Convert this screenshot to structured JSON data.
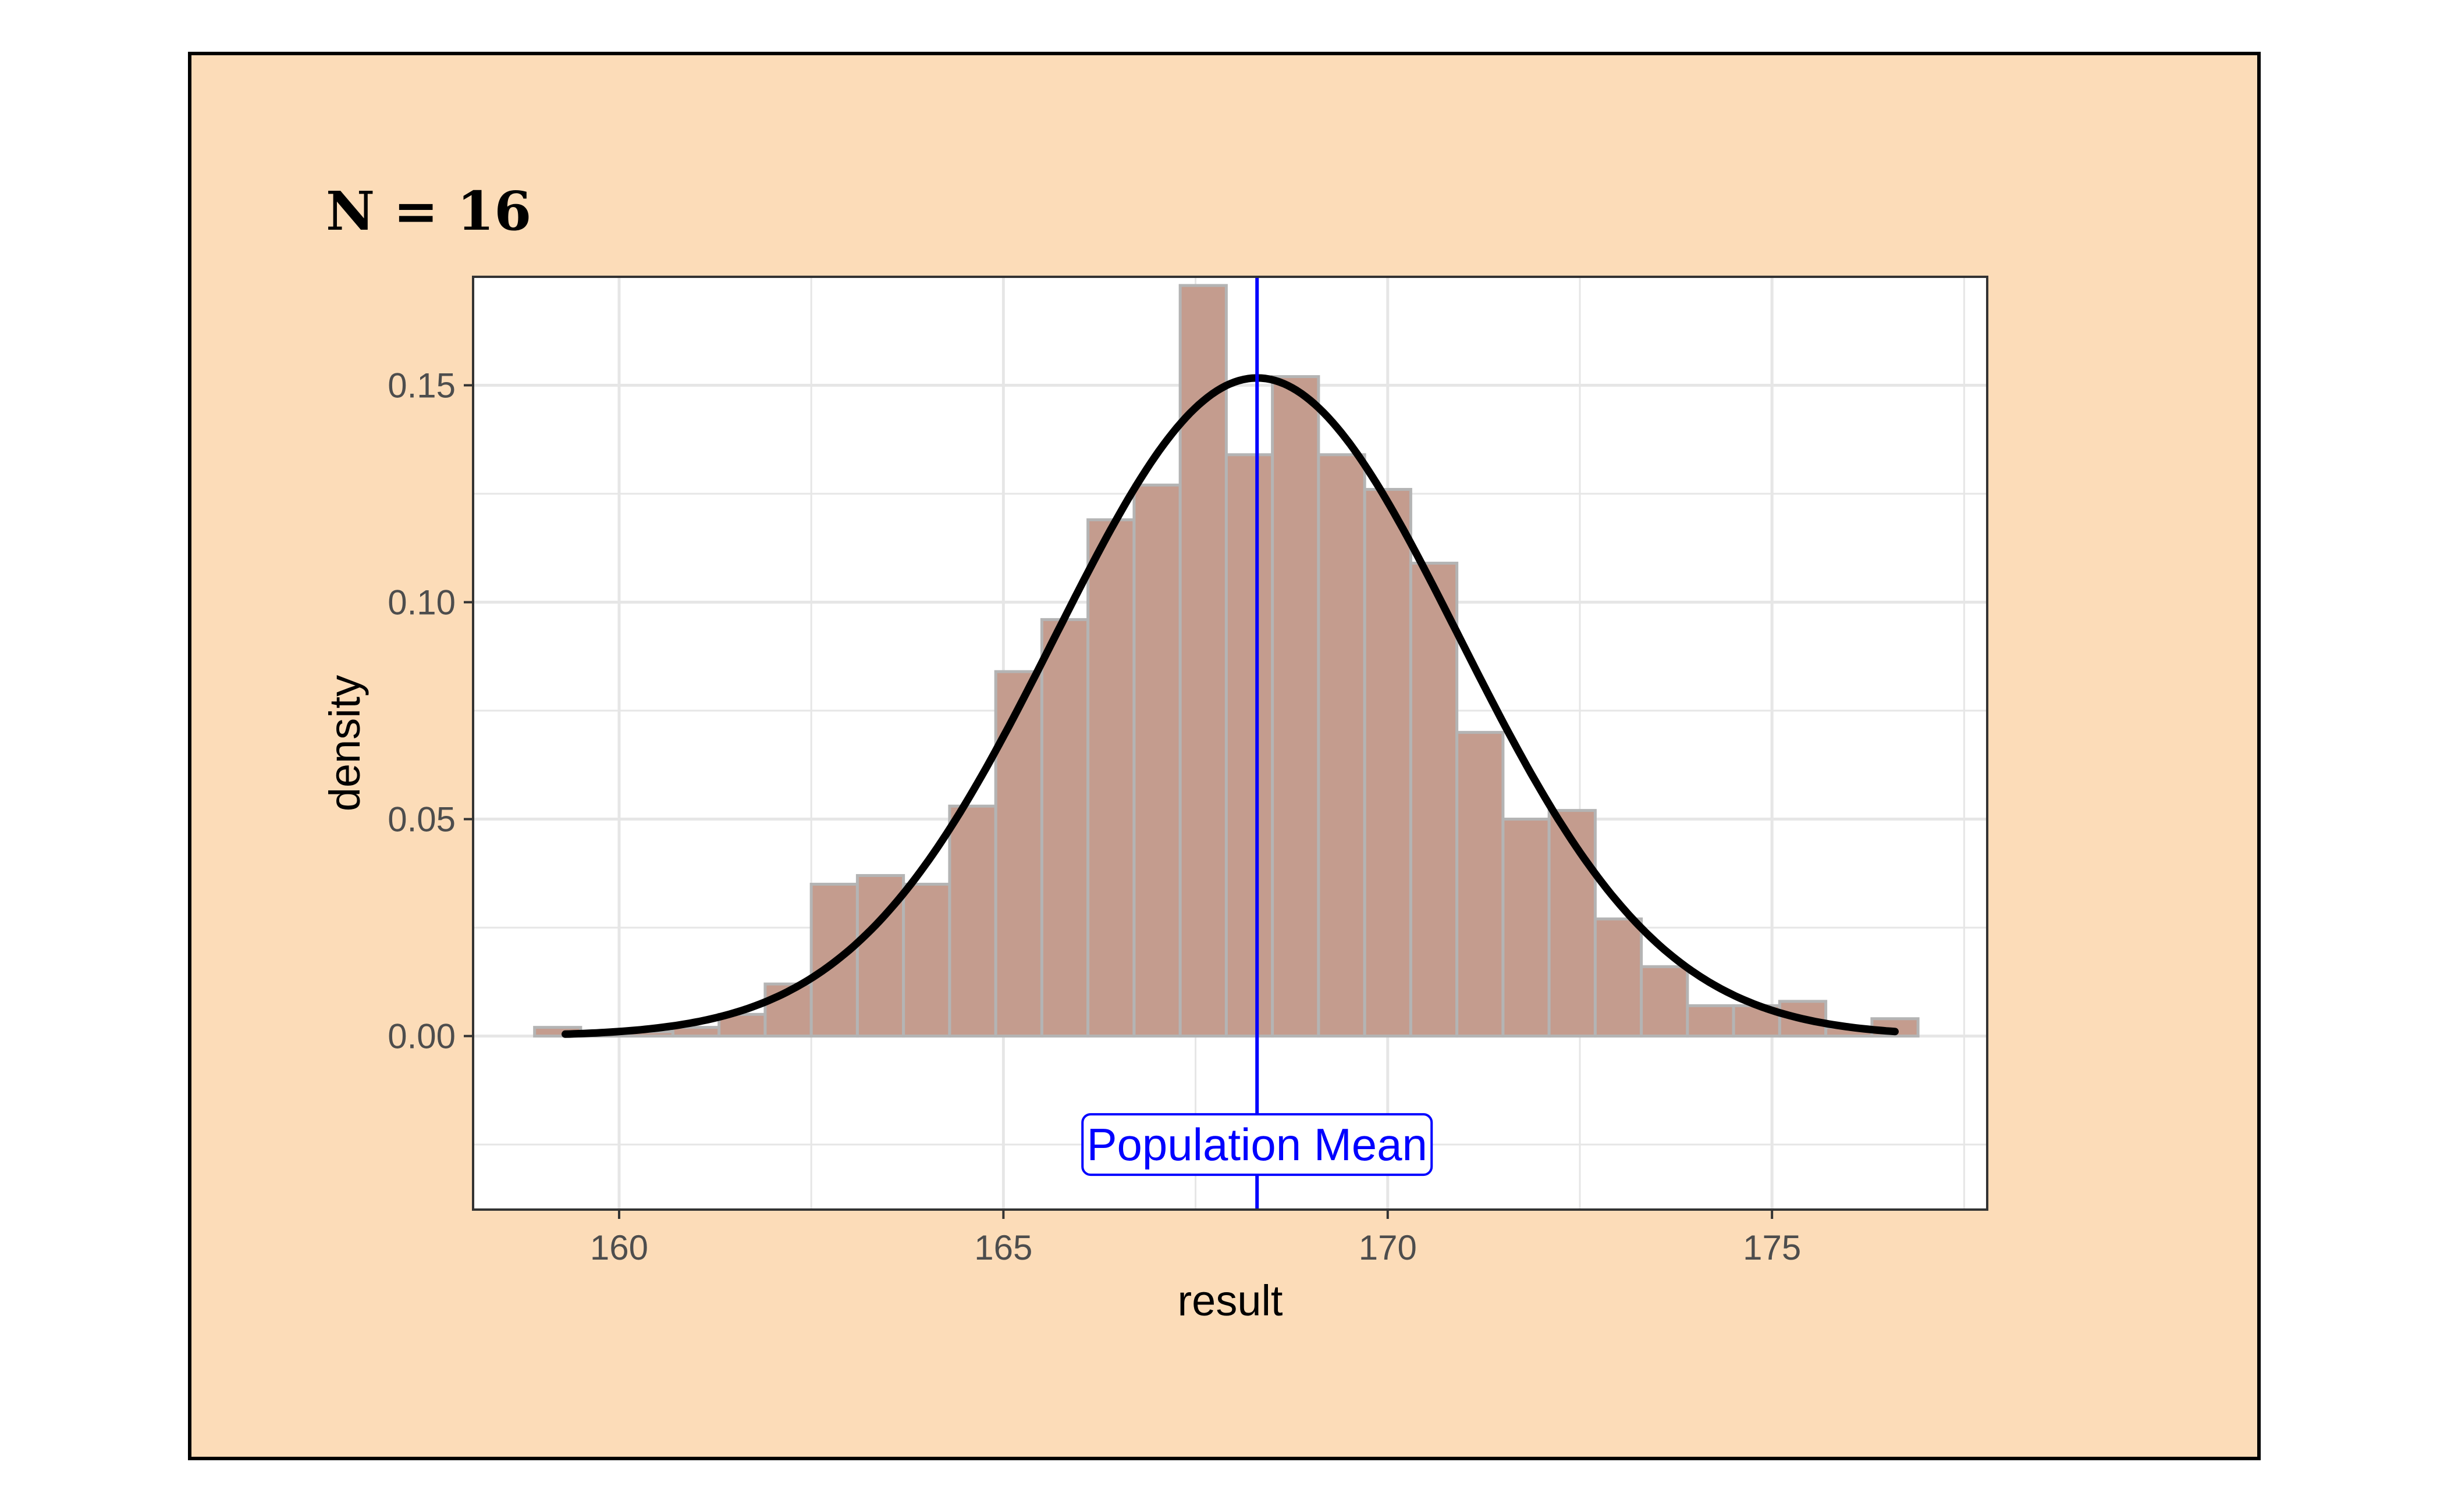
{
  "chart_data": {
    "type": "bar",
    "title": "N = 16",
    "xlabel": "result",
    "ylabel": "density",
    "xlim": [
      158.1,
      177.8
    ],
    "ylim": [
      -0.04,
      0.175
    ],
    "x_ticks": [
      160,
      165,
      170,
      175
    ],
    "x_tick_labels": [
      "160",
      "165",
      "170",
      "175"
    ],
    "y_ticks": [
      0.0,
      0.05,
      0.1,
      0.15
    ],
    "y_tick_labels": [
      "0.00",
      "0.05",
      "0.10",
      "0.15"
    ],
    "grid": true,
    "bin_width": 0.6,
    "bins": {
      "x_start": [
        158.9,
        159.5,
        160.1,
        160.7,
        161.3,
        161.9,
        162.5,
        163.1,
        163.7,
        164.3,
        164.9,
        165.5,
        166.1,
        166.7,
        167.3,
        167.9,
        168.5,
        169.1,
        169.7,
        170.3,
        170.9,
        171.5,
        172.1,
        172.7,
        173.3,
        173.9,
        174.5,
        175.1,
        175.7,
        176.3
      ],
      "density": [
        0.002,
        0.001,
        0.001,
        0.002,
        0.005,
        0.012,
        0.035,
        0.037,
        0.035,
        0.053,
        0.084,
        0.096,
        0.119,
        0.127,
        0.173,
        0.134,
        0.152,
        0.134,
        0.126,
        0.109,
        0.07,
        0.05,
        0.052,
        0.027,
        0.016,
        0.007,
        0.007,
        0.008,
        0.002,
        0.004
      ]
    },
    "normal_curve": {
      "mean": 168.3,
      "sd": 2.63,
      "x_range": [
        159.3,
        176.6
      ]
    },
    "population_mean": 168.3,
    "annotation": "Population Mean",
    "colors": {
      "background": "#fcdcb8",
      "panel": "#ffffff",
      "bar_fill": "#c49c8e",
      "bar_stroke": "#b4b4b4",
      "curve": "#000000",
      "mean_line": "#0000ff",
      "grid": "#e6e6e6"
    }
  }
}
